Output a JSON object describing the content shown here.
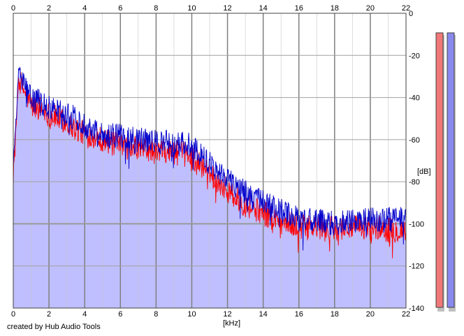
{
  "chart_data": {
    "type": "area",
    "xlabel": "[kHz]",
    "ylabel": "[dB]",
    "xlim": [
      0,
      22
    ],
    "ylim": [
      -140,
      0
    ],
    "x_ticks": [
      "0",
      "2",
      "4",
      "6",
      "8",
      "10",
      "12",
      "14",
      "16",
      "18",
      "20",
      "22"
    ],
    "y_ticks": [
      "0",
      "-20",
      "-40",
      "-60",
      "-80",
      "-100",
      "-120",
      "-140"
    ],
    "grid": true,
    "series": [
      {
        "color": "#ff0000",
        "x": [
          0.0,
          0.2,
          0.3,
          0.5,
          0.8,
          1.0,
          1.5,
          2.0,
          2.5,
          3.0,
          3.5,
          4.0,
          4.5,
          5.0,
          5.5,
          6.0,
          6.5,
          7.0,
          7.5,
          8.0,
          8.5,
          9.0,
          9.5,
          10.0,
          10.5,
          11.0,
          11.5,
          12.0,
          12.5,
          13.0,
          13.5,
          14.0,
          14.5,
          15.0,
          15.5,
          16.0,
          16.5,
          17.0,
          17.5,
          18.0,
          18.5,
          19.0,
          19.5,
          20.0,
          20.5,
          21.0,
          21.5,
          22.0
        ],
        "y": [
          -75,
          -48,
          -30,
          -35,
          -40,
          -44,
          -45,
          -48,
          -50,
          -52,
          -55,
          -57,
          -58,
          -60,
          -62,
          -63,
          -64,
          -64,
          -65,
          -66,
          -65,
          -66,
          -67,
          -68,
          -72,
          -76,
          -80,
          -84,
          -88,
          -91,
          -93,
          -95,
          -97,
          -99,
          -100,
          -101,
          -102,
          -102,
          -103,
          -102,
          -102,
          -102,
          -102,
          -102,
          -102,
          -103,
          -103,
          -103
        ]
      },
      {
        "color": "#0000cc",
        "x": [
          0.0,
          0.2,
          0.3,
          0.5,
          0.8,
          1.0,
          1.5,
          2.0,
          2.5,
          3.0,
          3.5,
          4.0,
          4.5,
          5.0,
          5.5,
          6.0,
          6.5,
          7.0,
          7.5,
          8.0,
          8.5,
          9.0,
          9.5,
          10.0,
          10.5,
          11.0,
          11.5,
          12.0,
          12.5,
          13.0,
          13.5,
          14.0,
          14.5,
          15.0,
          15.5,
          16.0,
          16.5,
          17.0,
          17.5,
          18.0,
          18.5,
          19.0,
          19.5,
          20.0,
          20.5,
          21.0,
          21.5,
          22.0
        ],
        "y": [
          -72,
          -45,
          -25,
          -32,
          -37,
          -41,
          -42,
          -45,
          -46,
          -48,
          -50,
          -53,
          -55,
          -57,
          -58,
          -58,
          -59,
          -60,
          -61,
          -61,
          -61,
          -62,
          -62,
          -63,
          -67,
          -71,
          -75,
          -78,
          -82,
          -85,
          -88,
          -90,
          -92,
          -94,
          -96,
          -97,
          -98,
          -99,
          -99,
          -100,
          -99,
          -99,
          -99,
          -98,
          -98,
          -98,
          -98,
          -98
        ]
      }
    ]
  },
  "footer": {
    "credit": "created by Hub Audio Tools"
  },
  "colors": {
    "fill": "#bfbfff",
    "grid_major": "#7f7f7f",
    "grid_minor": "#c8c8c8",
    "left_channel": "#ff0000",
    "right_channel": "#0000cc",
    "meter_left": "#f07878",
    "meter_right": "#8888ee"
  },
  "meters": [
    {
      "channel": "left",
      "level_db": -140
    },
    {
      "channel": "right",
      "level_db": -140
    }
  ]
}
